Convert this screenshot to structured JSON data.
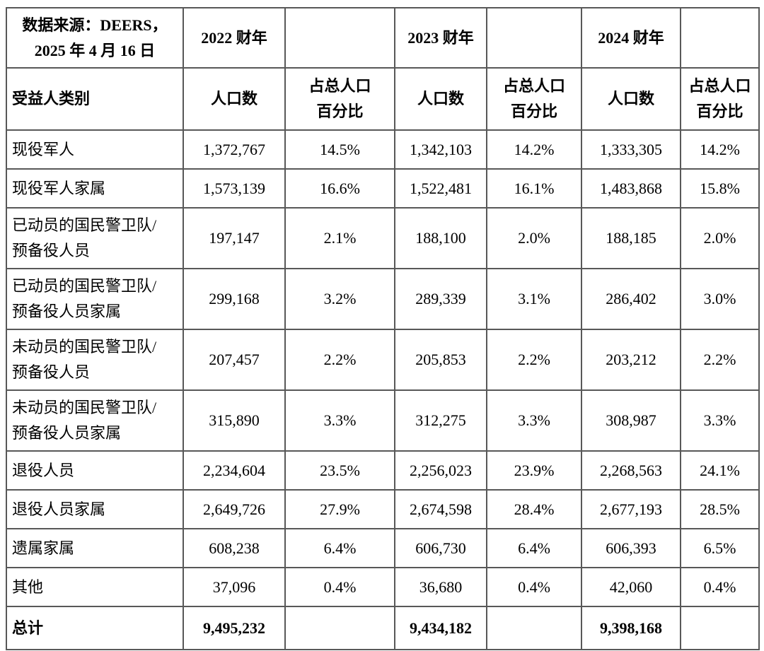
{
  "colors": {
    "background": "#ffffff",
    "border": "#585858",
    "text": "#000000"
  },
  "header": {
    "source_line1": "数据来源：DEERS，",
    "source_line2": "2025 年 4 月 16 日",
    "years": [
      "2022 财年",
      "2023 财年",
      "2024 财年"
    ],
    "category": "受益人类别",
    "population": "人口数",
    "percent_line1": "占总人口",
    "percent_line2": "百分比"
  },
  "rows": [
    {
      "category": "现役军人",
      "values": [
        "1,372,767",
        "14.5%",
        "1,342,103",
        "14.2%",
        "1,333,305",
        "14.2%"
      ]
    },
    {
      "category": "现役军人家属",
      "values": [
        "1,573,139",
        "16.6%",
        "1,522,481",
        "16.1%",
        "1,483,868",
        "15.8%"
      ]
    },
    {
      "category": "已动员的国民警卫队/\n预备役人员",
      "values": [
        "197,147",
        "2.1%",
        "188,100",
        "2.0%",
        "188,185",
        "2.0%"
      ]
    },
    {
      "category": "已动员的国民警卫队/\n预备役人员家属",
      "values": [
        "299,168",
        "3.2%",
        "289,339",
        "3.1%",
        "286,402",
        "3.0%"
      ]
    },
    {
      "category": "未动员的国民警卫队/\n预备役人员",
      "values": [
        "207,457",
        "2.2%",
        "205,853",
        "2.2%",
        "203,212",
        "2.2%"
      ]
    },
    {
      "category": "未动员的国民警卫队/\n预备役人员家属",
      "values": [
        "315,890",
        "3.3%",
        "312,275",
        "3.3%",
        "308,987",
        "3.3%"
      ]
    },
    {
      "category": "退役人员",
      "values": [
        "2,234,604",
        "23.5%",
        "2,256,023",
        "23.9%",
        "2,268,563",
        "24.1%"
      ]
    },
    {
      "category": "退役人员家属",
      "values": [
        "2,649,726",
        "27.9%",
        "2,674,598",
        "28.4%",
        "2,677,193",
        "28.5%"
      ]
    },
    {
      "category": "遗属家属",
      "values": [
        "608,238",
        "6.4%",
        "606,730",
        "6.4%",
        "606,393",
        "6.5%"
      ]
    },
    {
      "category": "其他",
      "values": [
        "37,096",
        "0.4%",
        "36,680",
        "0.4%",
        "42,060",
        "0.4%"
      ]
    }
  ],
  "total": {
    "category": "总计",
    "values": [
      "9,495,232",
      "",
      "9,434,182",
      "",
      "9,398,168",
      ""
    ]
  }
}
